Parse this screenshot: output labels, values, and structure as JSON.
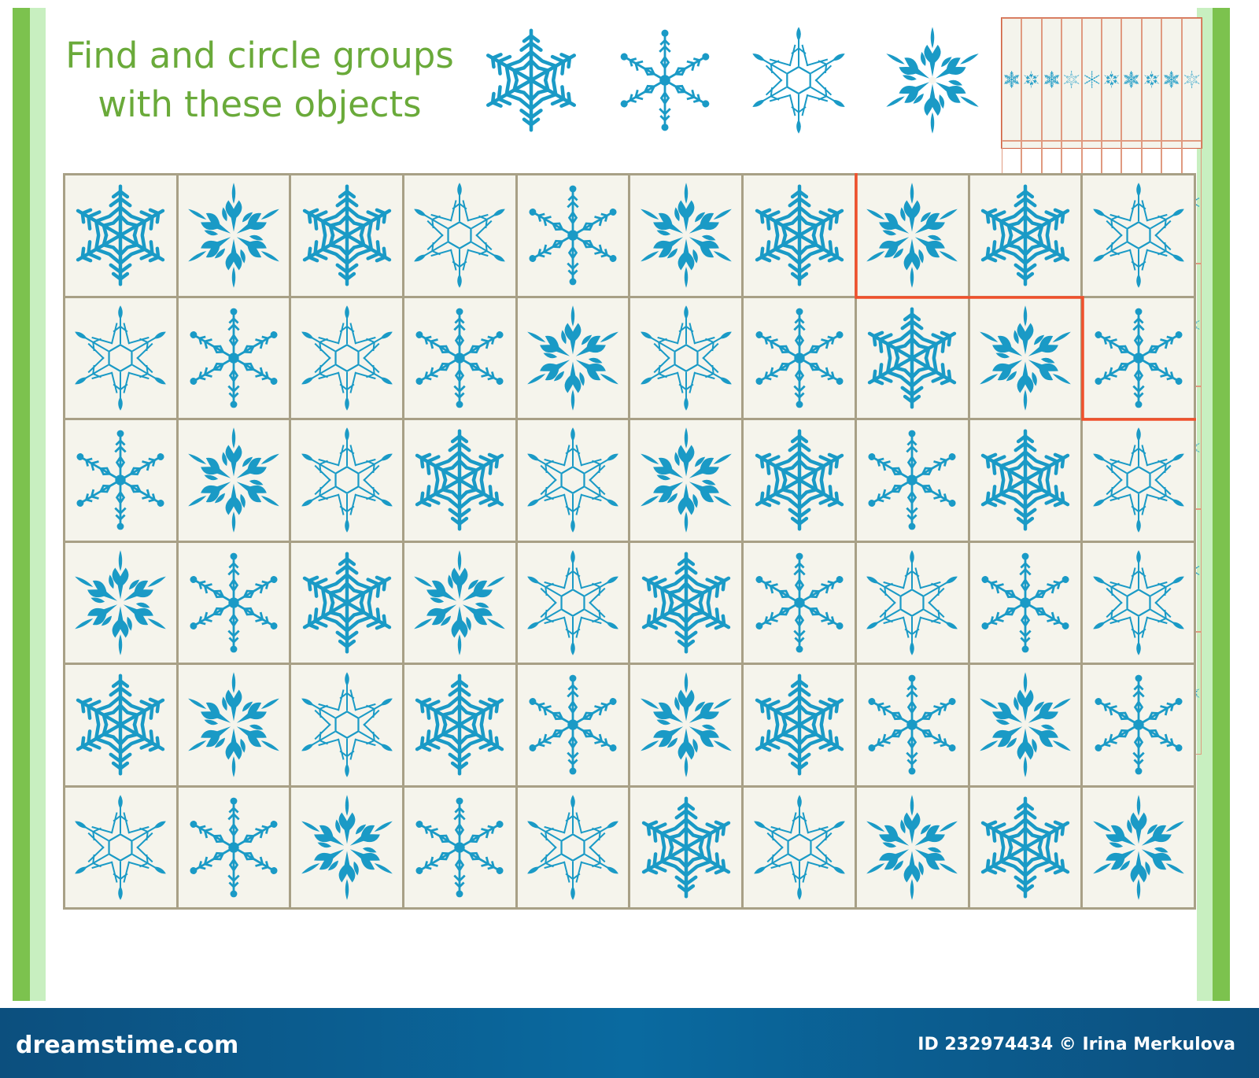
{
  "title_lines": [
    "Find and circle groups",
    "with these objects"
  ],
  "colors": {
    "snowflake": "#1a9ac6",
    "title": "#6aaa3a",
    "grid_line": "#a8a086",
    "answer_line": "#f0502c",
    "footer": "#0a5d90"
  },
  "reference_objects": [
    "fern-snowflake",
    "dot-snowflake",
    "hex-snowflake",
    "ornate-snowflake"
  ],
  "grid": {
    "rows": [
      [
        "fern",
        "ornate",
        "fern",
        "hex",
        "dot",
        "ornate",
        "fern",
        "ornate",
        "fern",
        "hex"
      ],
      [
        "hex",
        "dot",
        "hex",
        "dot",
        "ornate",
        "hex",
        "dot",
        "fern",
        "ornate",
        "dot"
      ],
      [
        "dot",
        "ornate",
        "hex",
        "fern",
        "hex",
        "ornate",
        "fern",
        "dot",
        "fern",
        "hex"
      ],
      [
        "ornate",
        "dot",
        "fern",
        "ornate",
        "hex",
        "fern",
        "dot",
        "hex",
        "dot",
        "hex"
      ],
      [
        "fern",
        "ornate",
        "hex",
        "fern",
        "dot",
        "ornate",
        "fern",
        "dot",
        "ornate",
        "dot"
      ],
      [
        "hex",
        "dot",
        "ornate",
        "dot",
        "hex",
        "fern",
        "hex",
        "ornate",
        "fern",
        "ornate"
      ]
    ],
    "example_group": [
      [
        0,
        7
      ],
      [
        0,
        8
      ],
      [
        0,
        9
      ],
      [
        1,
        9
      ]
    ]
  },
  "footer": {
    "brand": "dreamstime.com",
    "credit": "ID 232974434 © Irina Merkulova"
  }
}
